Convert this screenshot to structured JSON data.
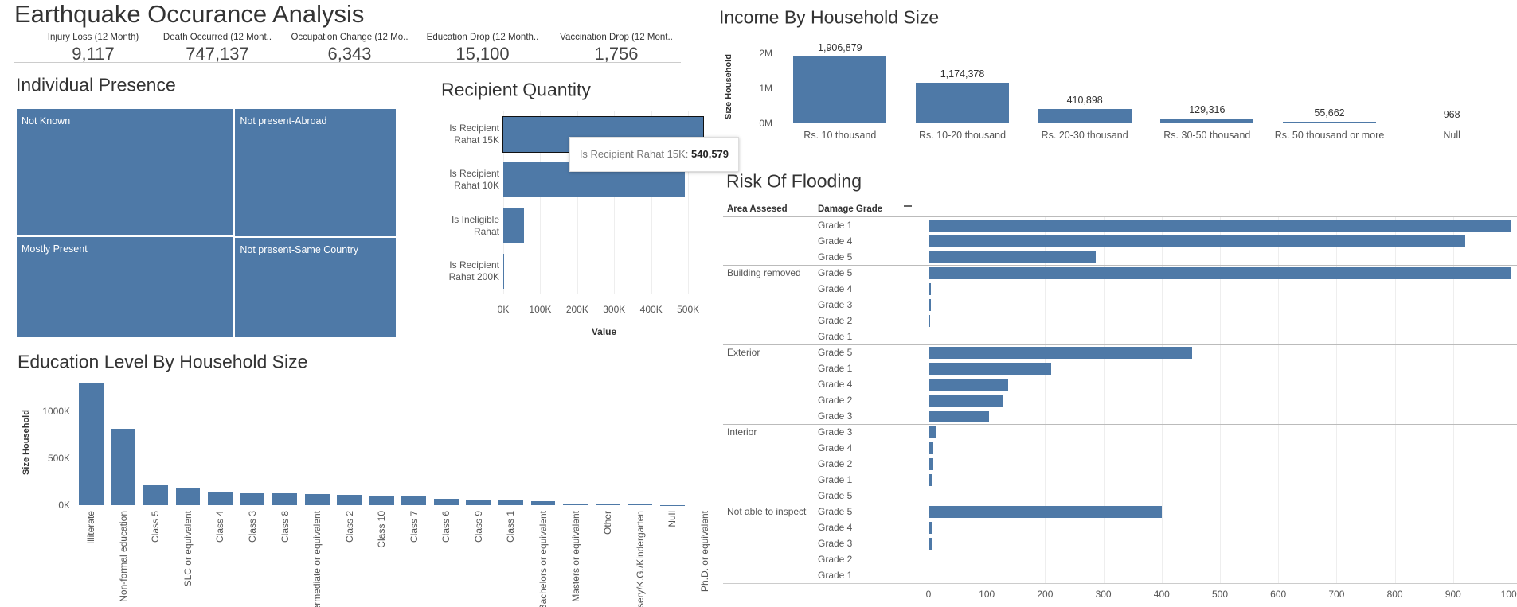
{
  "dashboard": {
    "title": "Earthquake Occurance Analysis",
    "kpis": [
      {
        "label": "Injury Loss (12 Month)",
        "value": "9,117"
      },
      {
        "label": "Death Occurred (12 Mont..",
        "value": "747,137"
      },
      {
        "label": "Occupation Change (12 Mo..",
        "value": "6,343"
      },
      {
        "label": "Education Drop (12 Month..",
        "value": "15,100"
      },
      {
        "label": "Vaccination Drop (12 Mont..",
        "value": "1,756"
      }
    ]
  },
  "chart_data": [
    {
      "type": "treemap",
      "title": "Individual Presence",
      "categories": [
        "Not Known",
        "Not present-Abroad",
        "Mostly Present",
        "Not present-Same Country"
      ],
      "values": [
        32.1,
        23.9,
        25.3,
        18.7
      ],
      "color": "#4e79a7"
    },
    {
      "type": "hbar",
      "title": "Recipient Quantity",
      "categories": [
        "Is Recipient Rahat 15K",
        "Is Recipient Rahat 10K",
        "Is Ineligible Rahat",
        "Is Recipient Rahat 200K"
      ],
      "values": [
        540579,
        492000,
        55000,
        300
      ],
      "value_labels": [
        "540,579",
        null,
        null,
        null
      ],
      "tooltip_label": "Is Recipient Rahat 15K:",
      "xlim": [
        0,
        545000
      ],
      "xticks": [
        {
          "value": 0,
          "label": "0K"
        },
        {
          "value": 100000,
          "label": "100K"
        },
        {
          "value": 200000,
          "label": "200K"
        },
        {
          "value": 300000,
          "label": "300K"
        },
        {
          "value": 400000,
          "label": "400K"
        },
        {
          "value": 500000,
          "label": "500K"
        }
      ],
      "x_label": "Value",
      "grid": true,
      "color": "#4e79a7"
    },
    {
      "type": "bar",
      "title": "Education Level By Household Size",
      "categories": [
        "Illiterate",
        "Non-formal education",
        "Class 5",
        "SLC or equivalent",
        "Class 4",
        "Class 3",
        "Class 8",
        "Intermediate or equivalent",
        "Class 2",
        "Class 10",
        "Class 7",
        "Class 6",
        "Class 9",
        "Class 1",
        "Bachelors or equivalent",
        "Masters or equivalent",
        "Other",
        "Nursery/K.G./Kindergarten",
        "Null",
        "Ph.D. or equivalent"
      ],
      "values": [
        1300000,
        814000,
        216000,
        186000,
        134000,
        130000,
        124000,
        122000,
        113000,
        103000,
        93000,
        72000,
        62000,
        52000,
        41000,
        21000,
        20000,
        10000,
        1000,
        500
      ],
      "ylim": [
        0,
        1350000
      ],
      "yticks": [
        {
          "value": 0,
          "label": "0K"
        },
        {
          "value": 500000,
          "label": "500K"
        },
        {
          "value": 1000000,
          "label": "1000K"
        }
      ],
      "y_label": "Size Household",
      "color": "#4e79a7"
    },
    {
      "type": "bar",
      "title": "Income By Household Size",
      "categories": [
        "Rs. 10 thousand",
        "Rs. 10-20 thousand",
        "Rs. 20-30 thousand",
        "Rs. 30-50 thousand",
        "Rs. 50 thousand or more",
        "Null"
      ],
      "values": [
        1906879,
        1174378,
        410898,
        129316,
        55662,
        968
      ],
      "value_labels": [
        "1,906,879",
        "1,174,378",
        "410,898",
        "129,316",
        "55,662",
        "968"
      ],
      "ylim": [
        0,
        2100000
      ],
      "yticks": [
        {
          "value": 0,
          "label": "0M"
        },
        {
          "value": 1000000,
          "label": "1M"
        },
        {
          "value": 2000000,
          "label": "2M"
        }
      ],
      "y_label": "Size Household",
      "color": "#4e79a7"
    },
    {
      "type": "grouped_hbar",
      "title": "Risk Of Flooding",
      "row_headers": [
        "Area Assesed",
        "Damage Grade"
      ],
      "groups": [
        {
          "name": null,
          "categories": [
            "Grade 1",
            "Grade 4",
            "Grade 5"
          ],
          "values": [
            1005,
            921,
            287
          ]
        },
        {
          "name": "Building removed",
          "categories": [
            "Grade 5",
            "Grade 4",
            "Grade 3",
            "Grade 2",
            "Grade 1"
          ],
          "values": [
            1003,
            4,
            4,
            3,
            0
          ]
        },
        {
          "name": "Exterior",
          "categories": [
            "Grade 5",
            "Grade 1",
            "Grade 4",
            "Grade 2",
            "Grade 3"
          ],
          "values": [
            452,
            210,
            136,
            128,
            104
          ]
        },
        {
          "name": "Interior",
          "categories": [
            "Grade 3",
            "Grade 4",
            "Grade 2",
            "Grade 1",
            "Grade 5"
          ],
          "values": [
            12,
            8,
            8,
            6,
            0
          ]
        },
        {
          "name": "Not able to inspect",
          "categories": [
            "Grade 5",
            "Grade 4",
            "Grade 3",
            "Grade 2",
            "Grade 1"
          ],
          "values": [
            400,
            7,
            5,
            2,
            0
          ]
        }
      ],
      "xlim": [
        0,
        1000
      ],
      "xticks": [
        0,
        100,
        200,
        300,
        400,
        500,
        600,
        700,
        800,
        900,
        1000
      ],
      "grid": true,
      "color": "#4e79a7"
    }
  ]
}
